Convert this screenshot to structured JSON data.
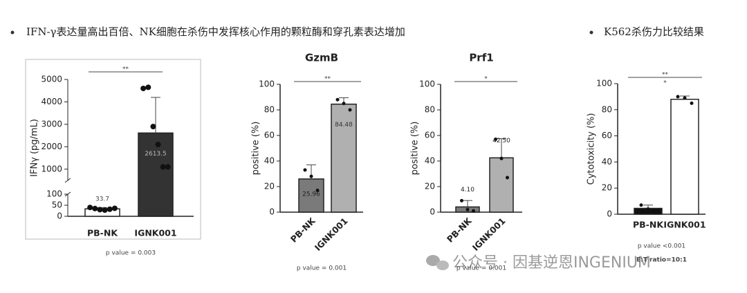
{
  "header": {
    "left": "IFN-γ表达量高出百倍、NK细胞在杀伤中发挥核心作用的颗粒酶和穿孔素表达增加",
    "right": "K562杀伤力比较结果"
  },
  "watermark": "公众号 · 因基逆恩INGENIUM",
  "chart_data": [
    {
      "type": "bar",
      "y_label": "IFNγ (pg/mL)",
      "categories": [
        "PB-NK",
        "IGNK001"
      ],
      "values": [
        33.7,
        2613.5
      ],
      "value_labels": [
        "33.7",
        "2613.5"
      ],
      "errors": [
        6,
        1587
      ],
      "points": [
        [
          40,
          35,
          30,
          28,
          32,
          36
        ],
        [
          4600,
          4650,
          2900,
          2100,
          1100,
          1100
        ]
      ],
      "colors": [
        "#ffffff",
        "#333333"
      ],
      "ylim": [
        0,
        5000
      ],
      "ybreak": [
        100,
        500
      ],
      "yticks": [
        0,
        50,
        100,
        1000,
        2000,
        3000,
        4000,
        5000
      ],
      "annotations": [
        "**"
      ],
      "p_value": "p value = 0.003"
    },
    {
      "type": "bar",
      "title": "GzmB",
      "y_label": "positive (%)",
      "categories": [
        "PB-NK",
        "IGNK001"
      ],
      "values": [
        25.96,
        84.48
      ],
      "value_labels": [
        "25.96",
        "84.48"
      ],
      "errors": [
        11,
        5
      ],
      "points": [
        [
          33,
          28,
          17
        ],
        [
          88,
          85,
          80
        ]
      ],
      "colors": [
        "#7a7a7a",
        "#b0b0b0"
      ],
      "ylim": [
        0,
        100
      ],
      "yticks": [
        0,
        20,
        40,
        60,
        80,
        100
      ],
      "annotations": [
        "**"
      ],
      "p_value": "p value = 0.001"
    },
    {
      "type": "bar",
      "title": "Prf1",
      "y_label": "positive (%)",
      "categories": [
        "PB-NK",
        "IGNK001"
      ],
      "values": [
        4.1,
        42.5
      ],
      "value_labels": [
        "4.10",
        "42.50"
      ],
      "errors": [
        5,
        15
      ],
      "points": [
        [
          9,
          2,
          1
        ],
        [
          57,
          42,
          27
        ]
      ],
      "colors": [
        "#7a7a7a",
        "#b0b0b0"
      ],
      "ylim": [
        0,
        100
      ],
      "yticks": [
        0,
        20,
        40,
        60,
        80,
        100
      ],
      "annotations": [
        "*"
      ],
      "p_value": "p value = 0.001"
    },
    {
      "type": "bar",
      "y_label": "Cytotoxicity (%)",
      "categories": [
        "PB-NK",
        "IGNK001"
      ],
      "values": [
        4.5,
        88
      ],
      "errors": [
        2.5,
        2.5
      ],
      "points": [
        [
          7,
          4,
          3
        ],
        [
          90,
          89,
          85
        ]
      ],
      "colors": [
        "#111111",
        "#ffffff"
      ],
      "ylim": [
        0,
        100
      ],
      "yticks": [
        0,
        20,
        40,
        60,
        80,
        100
      ],
      "annotations": [
        "**",
        "*"
      ],
      "p_value": "p value <0.001",
      "note": "E:T ratio=10:1"
    }
  ]
}
